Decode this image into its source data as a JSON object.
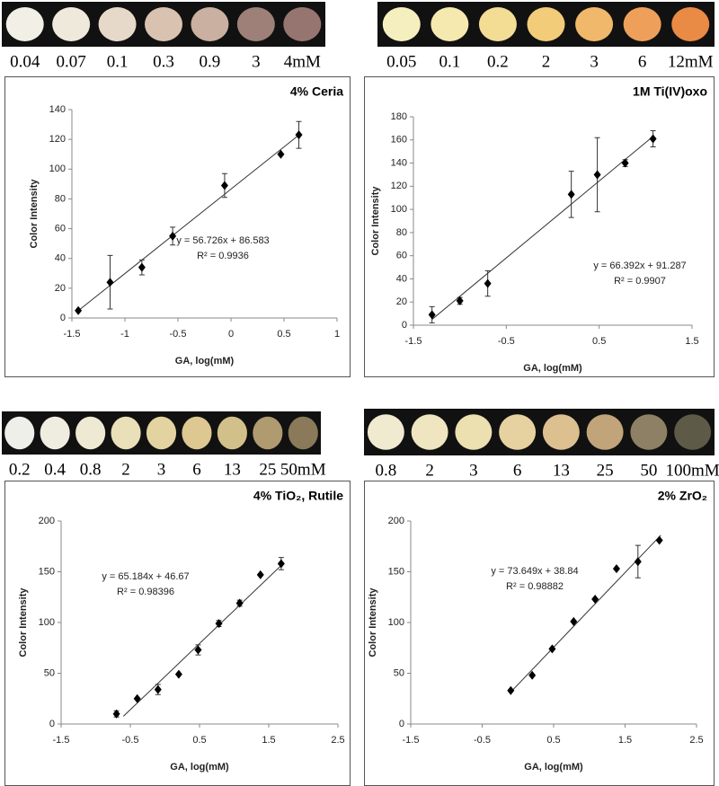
{
  "chart_data": [
    {
      "type": "scatter",
      "title": "4% Ceria",
      "xlabel": "GA, log(mM)",
      "ylabel": "Color Intensity",
      "spot_labels": [
        "0.04",
        "0.07",
        "0.1",
        "0.3",
        "0.9",
        "3",
        "4mM"
      ],
      "spot_colors": [
        "#f2efe6",
        "#efe9dc",
        "#e6d9c9",
        "#d9c3b0",
        "#c9b0a0",
        "#9e8078",
        "#967570"
      ],
      "x": [
        -1.44,
        -1.14,
        -0.84,
        -0.55,
        -0.06,
        0.47,
        0.64
      ],
      "values": [
        5,
        24,
        34,
        55,
        89,
        110,
        123
      ],
      "errors": [
        null,
        18,
        5,
        6,
        8,
        null,
        9
      ],
      "color": "#000000",
      "trendline": {
        "x": [
          -1.44,
          0.64
        ],
        "y": [
          4.9,
          122.9
        ]
      },
      "annotations": [
        "y = 56.726x + 86.583",
        "R² = 0.9936"
      ],
      "xlim": [
        -1.5,
        1
      ],
      "xticks": [
        -1.5,
        -1,
        -0.5,
        0,
        0.5,
        1
      ],
      "ylim": [
        0,
        140
      ],
      "yticks": [
        0,
        20,
        40,
        60,
        80,
        100,
        120,
        140
      ]
    },
    {
      "type": "scatter",
      "title": "1M Ti(IV)oxo",
      "xlabel": "GA, log(mM)",
      "ylabel": "Color Intensity",
      "spot_labels": [
        "0.05",
        "0.1",
        "0.2",
        "2",
        "3",
        "6",
        "12mM"
      ],
      "spot_colors": [
        "#f5efc0",
        "#f5e9b0",
        "#f3dd95",
        "#f2cc78",
        "#f0b86a",
        "#eea05a",
        "#e98a45"
      ],
      "x": [
        -1.3,
        -1,
        -0.7,
        0.2,
        0.48,
        0.78,
        1.08
      ],
      "values": [
        9,
        21,
        36,
        113,
        130,
        140,
        161
      ],
      "errors": [
        7,
        3,
        11,
        20,
        32,
        3,
        7
      ],
      "color": "#000000",
      "trendline": {
        "x": [
          -1.3,
          1.08
        ],
        "y": [
          5,
          163
        ]
      },
      "annotations": [
        "y = 66.392x + 91.287",
        "R² = 0.9907"
      ],
      "xlim": [
        -1.5,
        1.5
      ],
      "xticks": [
        -1.5,
        -0.5,
        0.5,
        1.5
      ],
      "ylim": [
        0,
        180
      ],
      "yticks": [
        0,
        20,
        40,
        60,
        80,
        100,
        120,
        140,
        160,
        180
      ]
    },
    {
      "type": "scatter",
      "title": "4% TiO₂, Rutile",
      "xlabel": "GA, log(mM)",
      "ylabel": "Color Intensity",
      "spot_labels": [
        "0.2",
        "0.4",
        "0.8",
        "2",
        "3",
        "6",
        "13",
        "25",
        "50mM"
      ],
      "spot_colors": [
        "#efefea",
        "#efede0",
        "#eee9d2",
        "#e9dfb8",
        "#e3d3a0",
        "#dcc890",
        "#d2c08a",
        "#b09a70",
        "#8a7a5a"
      ],
      "x": [
        -0.7,
        -0.4,
        -0.1,
        0.2,
        0.48,
        0.78,
        1.08,
        1.38,
        1.68
      ],
      "values": [
        10,
        25,
        34,
        49,
        73,
        99,
        119,
        147,
        158
      ],
      "errors": [
        3,
        null,
        5,
        null,
        5,
        3,
        3,
        null,
        6
      ],
      "color": "#000000",
      "trendline": {
        "x": [
          -0.6,
          1.7
        ],
        "y": [
          7.6,
          157.5
        ]
      },
      "annotations": [
        "y = 65.184x + 46.67",
        "R² = 0.98396"
      ],
      "xlim": [
        -1.5,
        2.5
      ],
      "xticks": [
        -1.5,
        -0.5,
        0.5,
        1.5,
        2.5
      ],
      "ylim": [
        0,
        200
      ],
      "yticks": [
        0,
        50,
        100,
        150,
        200
      ]
    },
    {
      "type": "scatter",
      "title": "2% ZrO₂",
      "xlabel": "GA, log(mM)",
      "ylabel": "Color Intensity",
      "spot_labels": [
        "0.8",
        "2",
        "3",
        "6",
        "13",
        "25",
        "50",
        "100mM"
      ],
      "spot_colors": [
        "#f0ead0",
        "#efe5c0",
        "#ecdfb0",
        "#e6d2a0",
        "#dcc090",
        "#c2a47a",
        "#8e8065",
        "#5e5a48"
      ],
      "x": [
        -0.1,
        0.2,
        0.48,
        0.78,
        1.08,
        1.38,
        1.68,
        1.98
      ],
      "values": [
        33,
        48,
        74,
        101,
        123,
        153,
        160,
        181
      ],
      "errors": [
        null,
        null,
        null,
        null,
        null,
        null,
        16,
        null
      ],
      "color": "#000000",
      "trendline": {
        "x": [
          -0.1,
          2
        ],
        "y": [
          31.5,
          186
        ]
      },
      "annotations": [
        "y = 73.649x + 38.84",
        "R² = 0.98882"
      ],
      "xlim": [
        -1.5,
        2.5
      ],
      "xticks": [
        -1.5,
        -0.5,
        0.5,
        1.5,
        2.5
      ],
      "ylim": [
        0,
        200
      ],
      "yticks": [
        0,
        50,
        100,
        150,
        200
      ]
    }
  ]
}
